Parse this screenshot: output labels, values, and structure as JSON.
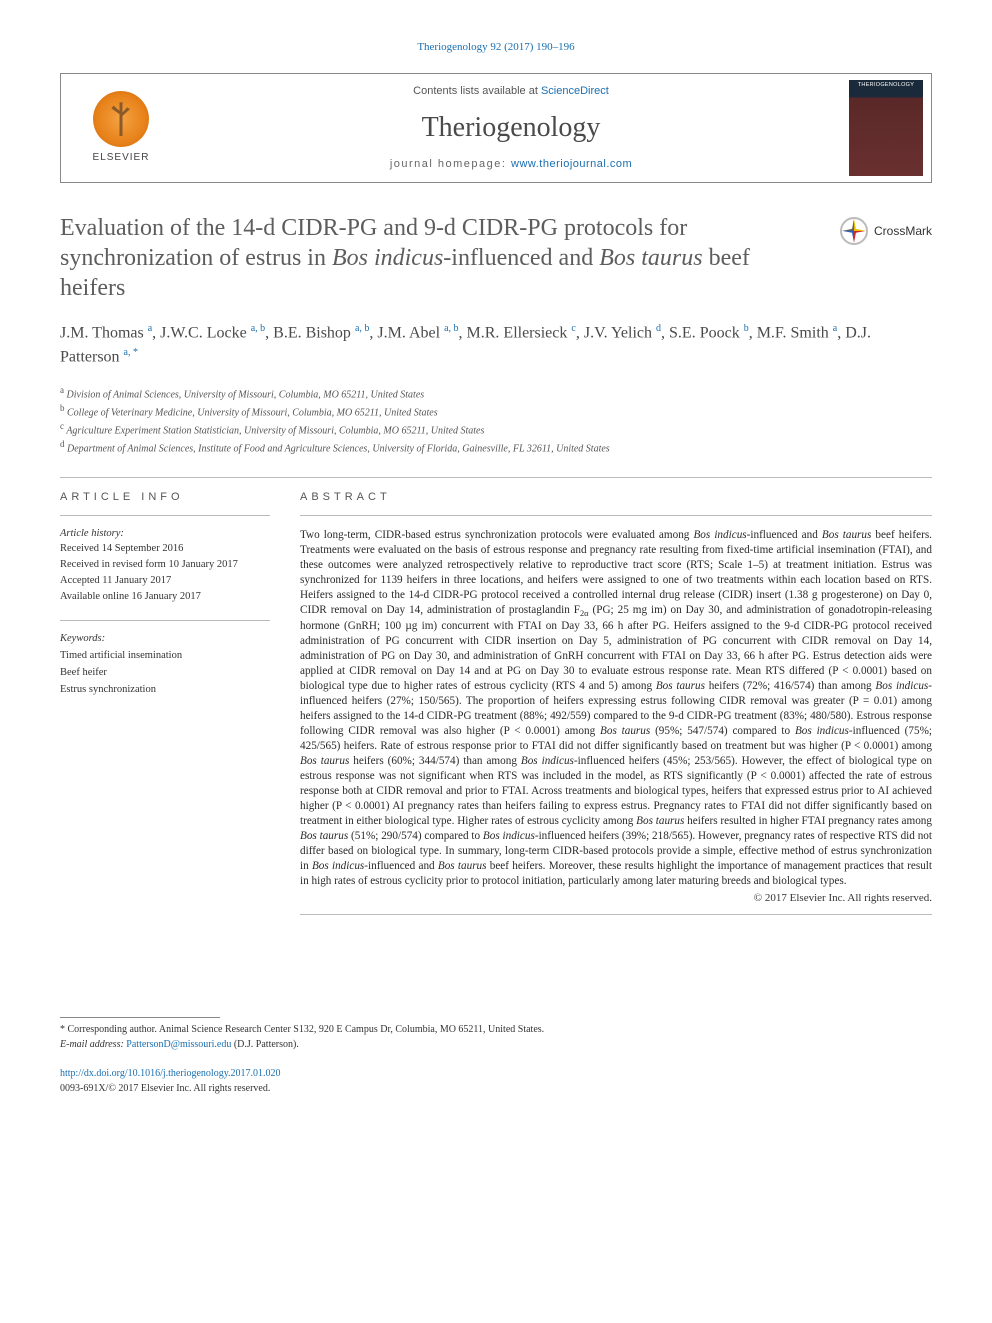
{
  "citation": "Theriogenology 92 (2017) 190–196",
  "header": {
    "contents_prefix": "Contents lists available at ",
    "contents_link": "ScienceDirect",
    "journal_title": "Theriogenology",
    "homepage_prefix": "journal homepage: ",
    "homepage_link": "www.theriojournal.com",
    "elsevier_label": "ELSEVIER",
    "cover_label": "THERIOGENOLOGY"
  },
  "crossmark_label": "CrossMark",
  "title_parts": {
    "p1": "Evaluation of the 14-d CIDR-PG and 9-d CIDR-PG protocols for synchronization of estrus in ",
    "i1": "Bos indicus",
    "p2": "-influenced and ",
    "i2": "Bos taurus",
    "p3": " beef heifers"
  },
  "authors": [
    {
      "name": "J.M. Thomas",
      "aff": "a"
    },
    {
      "name": "J.W.C. Locke",
      "aff": "a, b"
    },
    {
      "name": "B.E. Bishop",
      "aff": "a, b"
    },
    {
      "name": "J.M. Abel",
      "aff": "a, b"
    },
    {
      "name": "M.R. Ellersieck",
      "aff": "c"
    },
    {
      "name": "J.V. Yelich",
      "aff": "d"
    },
    {
      "name": "S.E. Poock",
      "aff": "b"
    },
    {
      "name": "M.F. Smith",
      "aff": "a"
    },
    {
      "name": "D.J. Patterson",
      "aff": "a, *"
    }
  ],
  "affiliations": [
    {
      "key": "a",
      "text": "Division of Animal Sciences, University of Missouri, Columbia, MO 65211, United States"
    },
    {
      "key": "b",
      "text": "College of Veterinary Medicine, University of Missouri, Columbia, MO 65211, United States"
    },
    {
      "key": "c",
      "text": "Agriculture Experiment Station Statistician, University of Missouri, Columbia, MO 65211, United States"
    },
    {
      "key": "d",
      "text": "Department of Animal Sciences, Institute of Food and Agriculture Sciences, University of Florida, Gainesville, FL 32611, United States"
    }
  ],
  "article_info_label": "ARTICLE INFO",
  "abstract_label": "ABSTRACT",
  "history": {
    "label": "Article history:",
    "received": "Received 14 September 2016",
    "revised": "Received in revised form 10 January 2017",
    "accepted": "Accepted 11 January 2017",
    "online": "Available online 16 January 2017"
  },
  "keywords": {
    "label": "Keywords:",
    "items": [
      "Timed artificial insemination",
      "Beef heifer",
      "Estrus synchronization"
    ]
  },
  "abstract": "Two long-term, CIDR-based estrus synchronization protocols were evaluated among Bos indicus-influenced and Bos taurus beef heifers. Treatments were evaluated on the basis of estrous response and pregnancy rate resulting from fixed-time artificial insemination (FTAI), and these outcomes were analyzed retrospectively relative to reproductive tract score (RTS; Scale 1–5) at treatment initiation. Estrus was synchronized for 1139 heifers in three locations, and heifers were assigned to one of two treatments within each location based on RTS. Heifers assigned to the 14-d CIDR-PG protocol received a controlled internal drug release (CIDR) insert (1.38 g progesterone) on Day 0, CIDR removal on Day 14, administration of prostaglandin F2α (PG; 25 mg im) on Day 30, and administration of gonadotropin-releasing hormone (GnRH; 100 µg im) concurrent with FTAI on Day 33, 66 h after PG. Heifers assigned to the 9-d CIDR-PG protocol received administration of PG concurrent with CIDR insertion on Day 5, administration of PG concurrent with CIDR removal on Day 14, administration of PG on Day 30, and administration of GnRH concurrent with FTAI on Day 33, 66 h after PG. Estrus detection aids were applied at CIDR removal on Day 14 and at PG on Day 30 to evaluate estrous response rate. Mean RTS differed (P < 0.0001) based on biological type due to higher rates of estrous cyclicity (RTS 4 and 5) among Bos taurus heifers (72%; 416/574) than among Bos indicus-influenced heifers (27%; 150/565). The proportion of heifers expressing estrus following CIDR removal was greater (P = 0.01) among heifers assigned to the 14-d CIDR-PG treatment (88%; 492/559) compared to the 9-d CIDR-PG treatment (83%; 480/580). Estrous response following CIDR removal was also higher (P < 0.0001) among Bos taurus (95%; 547/574) compared to Bos indicus-influenced (75%; 425/565) heifers. Rate of estrous response prior to FTAI did not differ significantly based on treatment but was higher (P < 0.0001) among Bos taurus heifers (60%; 344/574) than among Bos indicus-influenced heifers (45%; 253/565). However, the effect of biological type on estrous response was not significant when RTS was included in the model, as RTS significantly (P < 0.0001) affected the rate of estrous response both at CIDR removal and prior to FTAI. Across treatments and biological types, heifers that expressed estrus prior to AI achieved higher (P < 0.0001) AI pregnancy rates than heifers failing to express estrus. Pregnancy rates to FTAI did not differ significantly based on treatment in either biological type. Higher rates of estrous cyclicity among Bos taurus heifers resulted in higher FTAI pregnancy rates among Bos taurus (51%; 290/574) compared to Bos indicus-influenced heifers (39%; 218/565). However, pregnancy rates of respective RTS did not differ based on biological type. In summary, long-term CIDR-based protocols provide a simple, effective method of estrus synchronization in Bos indicus-influenced and Bos taurus beef heifers. Moreover, these results highlight the importance of management practices that result in high rates of estrous cyclicity prior to protocol initiation, particularly among later maturing breeds and biological types.",
  "copyright_line": "© 2017 Elsevier Inc. All rights reserved.",
  "footer": {
    "corr_label": "* Corresponding author. Animal Science Research Center S132, 920 E Campus Dr, Columbia, MO 65211, United States.",
    "email_label": "E-mail address: ",
    "email": "PattersonD@missouri.edu",
    "email_suffix": " (D.J. Patterson).",
    "doi": "http://dx.doi.org/10.1016/j.theriogenology.2017.01.020",
    "issn_line": "0093-691X/© 2017 Elsevier Inc. All rights reserved."
  },
  "colors": {
    "link": "#1a6faf",
    "text": "#333333",
    "title_grey": "#5d5d5d"
  }
}
